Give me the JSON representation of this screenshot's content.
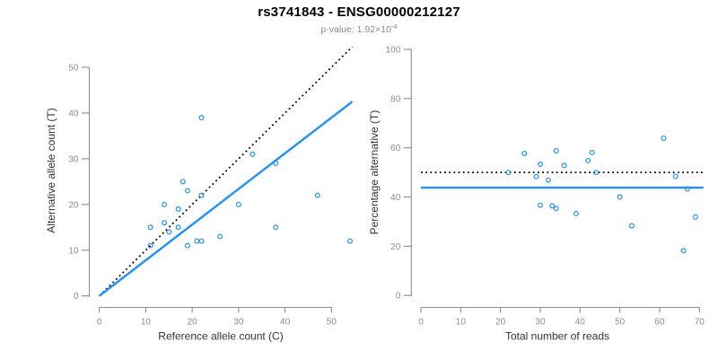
{
  "header": {
    "title": "rs3741843 - ENSG00000212127",
    "subtitle_prefix": "p-value: 1.92×10",
    "subtitle_exponent": "-4"
  },
  "colors": {
    "accent_blue": "#1E90FF",
    "axis_gray": "#8C8C8C",
    "axis_title_dark": "#333333",
    "subtitle_gray": "#8A8A8A",
    "identity_black": "#000000"
  },
  "chart_data": [
    {
      "id": "allele-counts",
      "type": "scatter",
      "title": "",
      "xlabel": "Reference allele count (C)",
      "ylabel": "Alternative allele count (T)",
      "xlim": [
        0,
        55
      ],
      "ylim": [
        0,
        55
      ],
      "xticks": [
        0,
        10,
        20,
        30,
        40,
        50
      ],
      "yticks": [
        0,
        10,
        20,
        30,
        40,
        50
      ],
      "grid": false,
      "legend": "none",
      "points": [
        [
          11,
          11
        ],
        [
          11,
          15
        ],
        [
          14,
          16
        ],
        [
          14,
          20
        ],
        [
          15,
          14
        ],
        [
          17,
          15
        ],
        [
          17,
          19
        ],
        [
          18,
          25
        ],
        [
          19,
          11
        ],
        [
          19,
          23
        ],
        [
          21,
          12
        ],
        [
          22,
          12
        ],
        [
          22,
          22
        ],
        [
          22,
          39
        ],
        [
          26,
          13
        ],
        [
          30,
          20
        ],
        [
          33,
          31
        ],
        [
          38,
          15
        ],
        [
          38,
          29
        ],
        [
          47,
          22
        ],
        [
          54,
          12
        ]
      ],
      "lines": [
        {
          "name": "identity-line",
          "dashed": true,
          "color": "#000000",
          "x1": 0,
          "y1": 0,
          "x2": 54.5,
          "y2": 54.5
        },
        {
          "name": "fit-line",
          "dashed": false,
          "color": "#1E90FF",
          "x1": 0,
          "y1": 0,
          "x2": 54.5,
          "y2": 42.5
        }
      ]
    },
    {
      "id": "percentage-alternative",
      "type": "scatter",
      "title": "",
      "xlabel": "Total number of reads",
      "ylabel": "Percentage alternative (T)",
      "xlim": [
        0,
        71
      ],
      "ylim": [
        0,
        100
      ],
      "xticks": [
        0,
        10,
        20,
        30,
        40,
        50,
        60,
        70
      ],
      "yticks": [
        0,
        20,
        40,
        60,
        80,
        100
      ],
      "grid": false,
      "legend": "none",
      "points": [
        [
          22,
          50.0
        ],
        [
          26,
          57.7
        ],
        [
          29,
          48.3
        ],
        [
          30,
          36.7
        ],
        [
          30,
          53.3
        ],
        [
          32,
          46.9
        ],
        [
          33,
          36.4
        ],
        [
          34,
          35.3
        ],
        [
          34,
          58.8
        ],
        [
          36,
          52.8
        ],
        [
          39,
          33.3
        ],
        [
          42,
          54.8
        ],
        [
          43,
          58.1
        ],
        [
          44,
          50.0
        ],
        [
          50,
          40.0
        ],
        [
          53,
          28.3
        ],
        [
          61,
          63.9
        ],
        [
          64,
          48.4
        ],
        [
          66,
          18.2
        ],
        [
          67,
          43.3
        ],
        [
          69,
          31.9
        ]
      ],
      "lines": [
        {
          "name": "fifty-percent-line",
          "dashed": true,
          "color": "#000000",
          "x1": 0,
          "y1": 50,
          "x2": 71,
          "y2": 50
        },
        {
          "name": "mean-percentage-line",
          "dashed": false,
          "color": "#1E90FF",
          "x1": 0,
          "y1": 43.8,
          "x2": 71,
          "y2": 43.8
        }
      ]
    }
  ]
}
